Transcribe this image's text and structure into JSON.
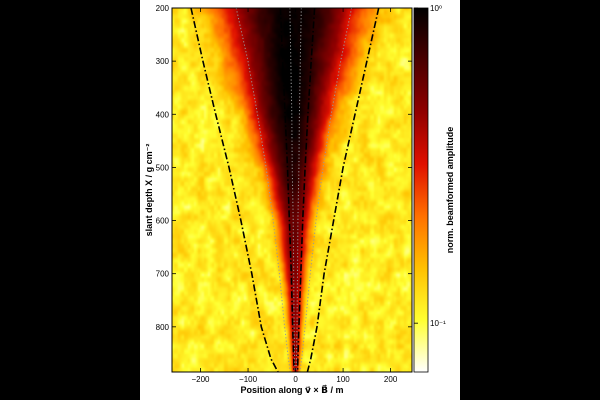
{
  "page": {
    "background": "#000000",
    "figure_background": "#ffffff"
  },
  "chart_data": {
    "type": "heatmap",
    "title": "",
    "xlabel": "Position along v⃗ × B⃗ / m",
    "ylabel": "slant depth X / g cm⁻²",
    "xlim": [
      -260,
      245
    ],
    "ylim": [
      885,
      200
    ],
    "x_ticks": [
      -200,
      -100,
      0,
      100,
      200
    ],
    "x_tick_labels": [
      "−200",
      "−100",
      "0",
      "100",
      "200"
    ],
    "y_ticks": [
      200,
      300,
      400,
      500,
      600,
      700,
      800
    ],
    "y_tick_labels": [
      "200",
      "300",
      "400",
      "500",
      "600",
      "700",
      "800"
    ],
    "colorbar": {
      "label": "norm. beamformed amplitude",
      "scale": "log",
      "range": [
        0.07,
        1
      ],
      "ticks": [
        {
          "value": 1,
          "label": "10⁰"
        },
        {
          "value": 0.1,
          "label": "10⁻¹"
        }
      ],
      "colormap": "afmhot_r",
      "colors": [
        "#ffffff",
        "#ffff30",
        "#ffc000",
        "#ff7000",
        "#e01000",
        "#900000",
        "#4a0000",
        "#000000"
      ]
    },
    "heatmap_model": {
      "axis_x": 0,
      "core_center_x": [
        [
          200,
          -8
        ],
        [
          400,
          -10
        ],
        [
          600,
          -3
        ],
        [
          885,
          0
        ]
      ],
      "core_halfwidth": [
        [
          200,
          110
        ],
        [
          300,
          85
        ],
        [
          400,
          62
        ],
        [
          500,
          42
        ],
        [
          600,
          28
        ],
        [
          700,
          18
        ],
        [
          800,
          11
        ],
        [
          885,
          6
        ]
      ],
      "core_peak_amplitude": [
        [
          200,
          1.0
        ],
        [
          400,
          1.0
        ],
        [
          500,
          0.85
        ],
        [
          600,
          0.6
        ],
        [
          700,
          0.5
        ],
        [
          800,
          0.45
        ],
        [
          885,
          0.45
        ]
      ],
      "background_amplitude": 0.11
    },
    "series": [
      {
        "style": "dash-dot black",
        "x": [
          -220,
          -195,
          -168,
          -140,
          -115,
          -92,
          -72,
          -52,
          -37
        ],
        "y": [
          200,
          300,
          400,
          500,
          600,
          700,
          800,
          860,
          885
        ]
      },
      {
        "style": "dash-dot black",
        "x": [
          175,
          150,
          125,
          100,
          80,
          60,
          45,
          32,
          25
        ],
        "y": [
          200,
          300,
          400,
          500,
          600,
          700,
          800,
          860,
          885
        ]
      },
      {
        "style": "dash-dot black",
        "x": [
          -32,
          -27,
          -22,
          -17,
          -13,
          -9,
          -6,
          -4,
          -3
        ],
        "y": [
          200,
          300,
          400,
          500,
          600,
          700,
          800,
          860,
          885
        ]
      },
      {
        "style": "dash-dot black",
        "x": [
          40,
          33,
          26,
          20,
          15,
          11,
          7,
          5,
          4
        ],
        "y": [
          200,
          300,
          400,
          500,
          600,
          700,
          800,
          860,
          885
        ]
      },
      {
        "style": "dotted gray",
        "x": [
          -125,
          -100,
          -80,
          -62,
          -47,
          -34,
          -23,
          -15,
          -11
        ],
        "y": [
          200,
          300,
          400,
          500,
          600,
          700,
          800,
          860,
          885
        ]
      },
      {
        "style": "dotted gray",
        "x": [
          118,
          95,
          75,
          58,
          43,
          31,
          20,
          13,
          9
        ],
        "y": [
          200,
          300,
          400,
          500,
          600,
          700,
          800,
          860,
          885
        ]
      },
      {
        "style": "dotted gray",
        "x": [
          -12,
          -10,
          -8,
          -7,
          -5,
          -4,
          -3,
          -2,
          -1
        ],
        "y": [
          200,
          300,
          400,
          500,
          600,
          700,
          800,
          860,
          885
        ]
      },
      {
        "style": "dotted gray",
        "x": [
          12,
          10,
          8,
          7,
          5,
          4,
          3,
          2,
          1
        ],
        "y": [
          200,
          300,
          400,
          500,
          600,
          700,
          800,
          860,
          885
        ]
      }
    ]
  }
}
